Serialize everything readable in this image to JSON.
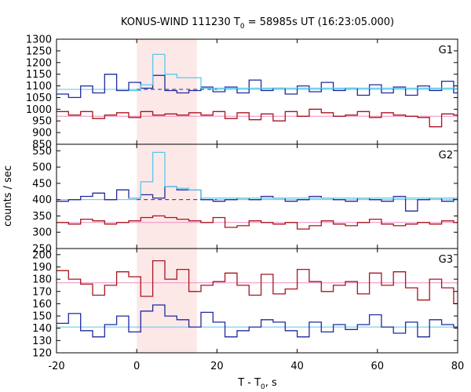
{
  "chart_data": {
    "type": "line",
    "title": "KONUS-WIND 111230 T",
    "title_sub": "0",
    "title_rest": " = 58985s UT (16:23:05.000)",
    "xlabel": "T - T",
    "xlabel_sub": "0",
    "xlabel_rest": ", s",
    "ylabel": "counts / sec",
    "xlim": [
      -20,
      80
    ],
    "xticks": [
      -20,
      0,
      20,
      40,
      60,
      80
    ],
    "highlight": {
      "x0": 0,
      "x1": 15,
      "color": "#fde8e8"
    },
    "colors": {
      "blue": "#1f2a9e",
      "red": "#a8141e",
      "cyan": "#5ac8ec",
      "pink": "#f08cc0"
    },
    "panels": [
      {
        "name": "G1",
        "ylim": [
          850,
          1300
        ],
        "yticks": [
          850,
          900,
          950,
          1000,
          1050,
          1100,
          1150,
          1200,
          1250,
          1300
        ],
        "series": [
          {
            "color": "blue",
            "x": [
              -20,
              -17,
              -14,
              -11,
              -8,
              -5,
              -2,
              1,
              4,
              7,
              10,
              13,
              16,
              19,
              22,
              25,
              28,
              31,
              34,
              37,
              40,
              43,
              46,
              49,
              52,
              55,
              58,
              61,
              64,
              67,
              70,
              73,
              76,
              79
            ],
            "y": [
              1065,
              1050,
              1100,
              1070,
              1150,
              1080,
              1115,
              1090,
              1145,
              1080,
              1070,
              1080,
              1095,
              1075,
              1095,
              1070,
              1125,
              1080,
              1090,
              1065,
              1100,
              1075,
              1115,
              1080,
              1090,
              1060,
              1105,
              1070,
              1095,
              1060,
              1100,
              1080,
              1120,
              1070
            ]
          },
          {
            "color": "red",
            "x": [
              -20,
              -17,
              -14,
              -11,
              -8,
              -5,
              -2,
              1,
              4,
              7,
              10,
              13,
              16,
              19,
              22,
              25,
              28,
              31,
              34,
              37,
              40,
              43,
              46,
              49,
              52,
              55,
              58,
              61,
              64,
              67,
              70,
              73,
              76,
              79
            ],
            "y": [
              990,
              975,
              990,
              960,
              975,
              985,
              965,
              990,
              975,
              980,
              975,
              985,
              975,
              990,
              960,
              985,
              955,
              980,
              950,
              990,
              970,
              1000,
              985,
              970,
              975,
              990,
              965,
              985,
              975,
              970,
              965,
              925,
              980,
              975
            ]
          },
          {
            "color": "cyan",
            "x": [
              -2,
              1,
              4,
              7,
              10,
              13,
              16
            ],
            "y": [
              1080,
              1105,
              1235,
              1150,
              1135,
              1135,
              1090
            ]
          }
        ],
        "fits": [
          {
            "color": "cyan",
            "value": 1085,
            "from": -20,
            "to": 0
          },
          {
            "color": "blue",
            "value": 1085,
            "from": 0,
            "to": 20,
            "dashed": true
          },
          {
            "color": "cyan",
            "value": 1085,
            "from": 20,
            "to": 80
          },
          {
            "color": "pink",
            "value": 970,
            "from": -20,
            "to": 80
          }
        ]
      },
      {
        "name": "G2",
        "ylim": [
          250,
          570
        ],
        "yticks": [
          250,
          300,
          350,
          400,
          450,
          500,
          550
        ],
        "series": [
          {
            "color": "blue",
            "x": [
              -20,
              -17,
              -14,
              -11,
              -8,
              -5,
              -2,
              1,
              4,
              7,
              10,
              13,
              16,
              19,
              22,
              25,
              28,
              31,
              34,
              37,
              40,
              43,
              46,
              49,
              52,
              55,
              58,
              61,
              64,
              67,
              70,
              73,
              76,
              79
            ],
            "y": [
              395,
              400,
              410,
              420,
              400,
              430,
              405,
              415,
              405,
              440,
              430,
              430,
              400,
              395,
              400,
              405,
              400,
              410,
              405,
              395,
              400,
              410,
              405,
              400,
              395,
              405,
              400,
              395,
              410,
              365,
              400,
              405,
              395,
              405
            ]
          },
          {
            "color": "red",
            "x": [
              -20,
              -17,
              -14,
              -11,
              -8,
              -5,
              -2,
              1,
              4,
              7,
              10,
              13,
              16,
              19,
              22,
              25,
              28,
              31,
              34,
              37,
              40,
              43,
              46,
              49,
              52,
              55,
              58,
              61,
              64,
              67,
              70,
              73,
              76,
              79
            ],
            "y": [
              330,
              325,
              340,
              335,
              325,
              330,
              335,
              345,
              350,
              345,
              340,
              335,
              330,
              345,
              315,
              320,
              335,
              330,
              325,
              330,
              310,
              320,
              335,
              325,
              320,
              330,
              340,
              325,
              320,
              325,
              330,
              325,
              335,
              330
            ]
          },
          {
            "color": "cyan",
            "x": [
              -2,
              1,
              4,
              7,
              10,
              13,
              16
            ],
            "y": [
              405,
              455,
              545,
              440,
              435,
              430,
              405
            ]
          }
        ],
        "fits": [
          {
            "color": "cyan",
            "value": 400,
            "from": -20,
            "to": 0
          },
          {
            "color": "blue",
            "value": 400,
            "from": 0,
            "to": 20,
            "dashed": true
          },
          {
            "color": "cyan",
            "value": 400,
            "from": 20,
            "to": 80
          },
          {
            "color": "pink",
            "value": 330,
            "from": -20,
            "to": 80
          }
        ]
      },
      {
        "name": "G3",
        "ylim": [
          120,
          205
        ],
        "yticks": [
          120,
          130,
          140,
          150,
          160,
          170,
          180,
          190,
          200
        ],
        "series": [
          {
            "color": "red",
            "x": [
              -20,
              -17,
              -14,
              -11,
              -8,
              -5,
              -2,
              1,
              4,
              7,
              10,
              13,
              16,
              19,
              22,
              25,
              28,
              31,
              34,
              37,
              40,
              43,
              46,
              49,
              52,
              55,
              58,
              61,
              64,
              67,
              70,
              73,
              76,
              79
            ],
            "y": [
              187,
              180,
              176,
              167,
              175,
              186,
              182,
              166,
              195,
              180,
              188,
              170,
              175,
              178,
              185,
              175,
              167,
              184,
              168,
              172,
              188,
              178,
              170,
              175,
              178,
              168,
              185,
              175,
              186,
              173,
              163,
              180,
              173,
              160
            ]
          },
          {
            "color": "blue",
            "x": [
              -20,
              -17,
              -14,
              -11,
              -8,
              -5,
              -2,
              1,
              4,
              7,
              10,
              13,
              16,
              19,
              22,
              25,
              28,
              31,
              34,
              37,
              40,
              43,
              46,
              49,
              52,
              55,
              58,
              61,
              64,
              67,
              70,
              73,
              76,
              79
            ],
            "y": [
              144,
              152,
              138,
              133,
              143,
              150,
              137,
              154,
              159,
              150,
              147,
              141,
              153,
              145,
              133,
              138,
              141,
              147,
              145,
              138,
              133,
              145,
              137,
              143,
              139,
              143,
              151,
              141,
              136,
              145,
              133,
              147,
              143,
              141
            ]
          }
        ],
        "fits": [
          {
            "color": "pink",
            "value": 177,
            "from": -20,
            "to": 80
          },
          {
            "color": "cyan",
            "value": 141,
            "from": -20,
            "to": 80
          }
        ]
      }
    ]
  }
}
